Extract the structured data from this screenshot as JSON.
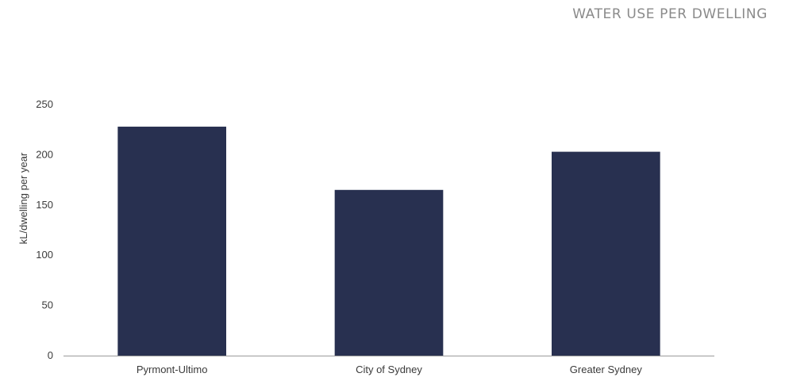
{
  "chart_data": {
    "type": "bar",
    "title": "WATER USE PER DWELLING",
    "xlabel": "",
    "ylabel": "kL/dwelling per year",
    "categories": [
      "Pyrmont-Ultimo",
      "City of Sydney",
      "Greater Sydney"
    ],
    "values": [
      228,
      165,
      203
    ],
    "ylim": [
      0,
      250
    ],
    "yticks": [
      0,
      50,
      100,
      150,
      200,
      250
    ],
    "grid": false,
    "bar_color": "#283050",
    "axis_color": "#9a9a9a"
  }
}
